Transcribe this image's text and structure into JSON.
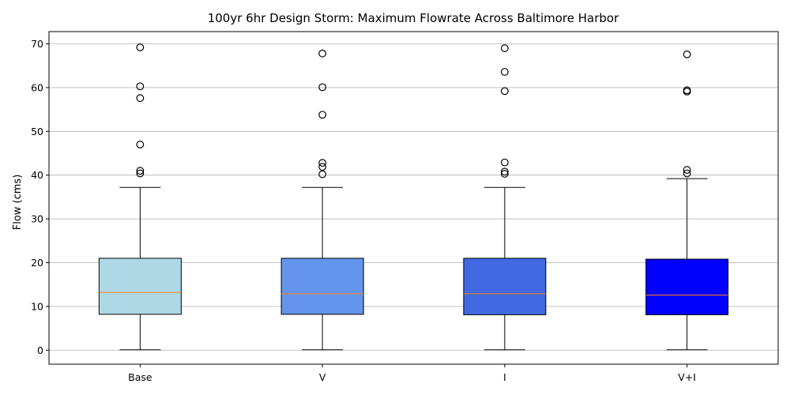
{
  "chart_data": {
    "type": "box",
    "title": "100yr 6hr Design Storm: Maximum Flowrate Across Baltimore Harbor",
    "xlabel": "",
    "ylabel": "Flow (cms)",
    "ylim": [
      -3.2,
      72.8
    ],
    "yticks": [
      0,
      10,
      20,
      30,
      40,
      50,
      60,
      70
    ],
    "grid": "y",
    "median_color": "#ff7f0e",
    "categories": [
      "Base",
      "V",
      "I",
      "V+I"
    ],
    "boxes": [
      {
        "label": "Base",
        "color": "#add8e6",
        "whislo": 0.1,
        "q1": 8.2,
        "med": 13.2,
        "q3": 21.0,
        "whishi": 37.2,
        "fliers": [
          69.2,
          60.3,
          57.6,
          47.0,
          41.0,
          40.4
        ]
      },
      {
        "label": "V",
        "color": "#6495ed",
        "whislo": 0.1,
        "q1": 8.2,
        "med": 12.9,
        "q3": 21.0,
        "whishi": 37.2,
        "fliers": [
          67.8,
          60.1,
          53.8,
          42.8,
          41.9,
          40.2
        ]
      },
      {
        "label": "I",
        "color": "#4169e1",
        "whislo": 0.1,
        "q1": 8.1,
        "med": 12.9,
        "q3": 21.0,
        "whishi": 37.2,
        "fliers": [
          69.0,
          63.6,
          59.2,
          42.9,
          40.8,
          40.3
        ]
      },
      {
        "label": "V+I",
        "color": "#0000ff",
        "whislo": 0.1,
        "q1": 8.1,
        "med": 12.6,
        "q3": 20.8,
        "whishi": 39.2,
        "fliers": [
          67.6,
          59.4,
          59.1,
          41.2,
          40.4
        ]
      }
    ]
  }
}
